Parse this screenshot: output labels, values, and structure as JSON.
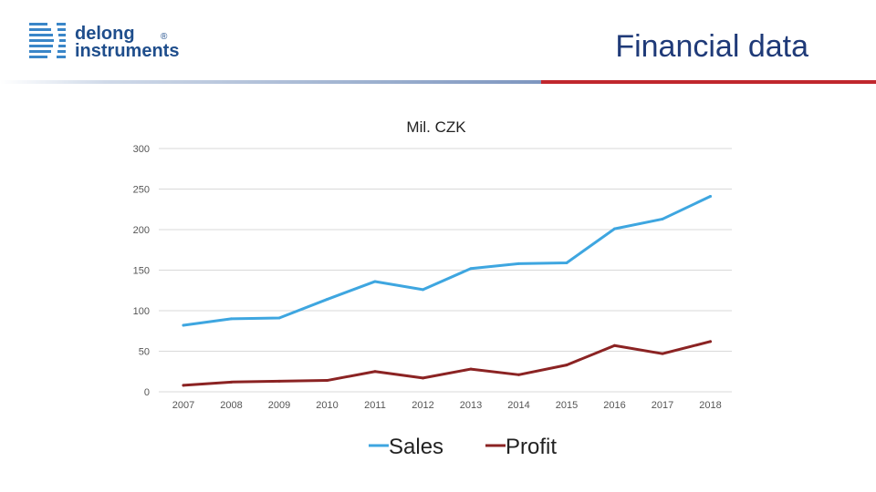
{
  "header": {
    "logo_line1": "delong",
    "logo_line2": "instruments",
    "logo_mark": "®",
    "title": "Financial data"
  },
  "colors": {
    "sales": "#3ea6e0",
    "profit": "#8b2323",
    "accent_red": "#c0272d",
    "brand_blue": "#1f4e8c"
  },
  "chart_data": {
    "type": "line",
    "title": "Mil. CZK",
    "xlabel": "",
    "ylabel": "",
    "ylim": [
      0,
      300
    ],
    "yticks": [
      0,
      50,
      100,
      150,
      200,
      250,
      300
    ],
    "grid": true,
    "legend_position": "bottom",
    "categories": [
      "2007",
      "2008",
      "2009",
      "2010",
      "2011",
      "2012",
      "2013",
      "2014",
      "2015",
      "2016",
      "2017",
      "2018"
    ],
    "series": [
      {
        "name": "Sales",
        "values": [
          82,
          90,
          91,
          114,
          136,
          126,
          152,
          158,
          159,
          201,
          213,
          241
        ]
      },
      {
        "name": "Profit",
        "values": [
          8,
          12,
          13,
          14,
          25,
          17,
          28,
          21,
          33,
          57,
          47,
          62
        ]
      }
    ]
  }
}
